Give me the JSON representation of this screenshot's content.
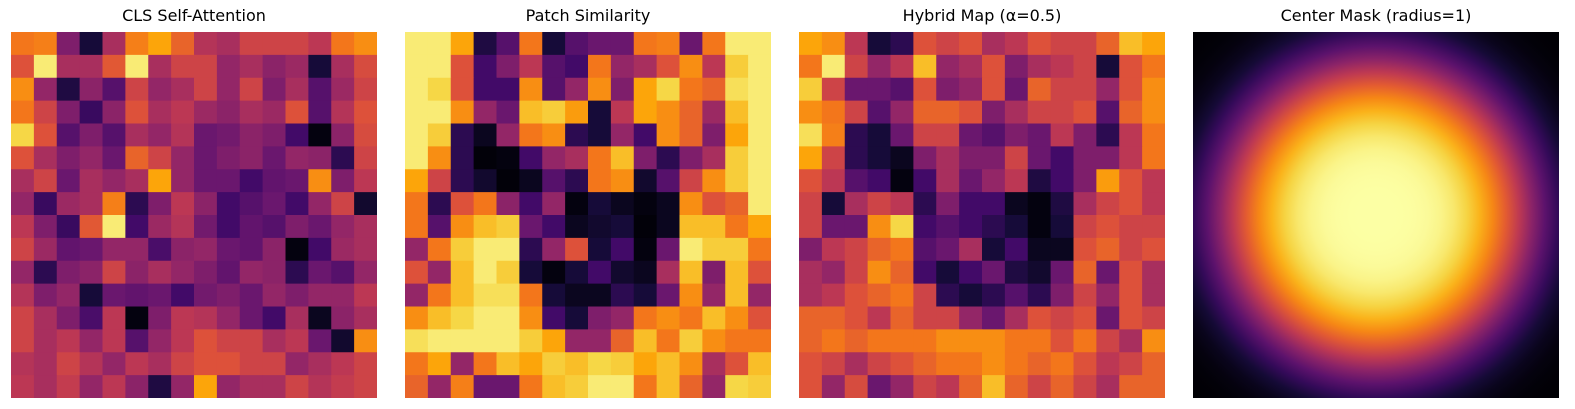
{
  "colormap": "inferno",
  "panels": [
    {
      "title": "CLS Self-Attention",
      "chart_data": {
        "type": "heatmap",
        "colormap": "inferno",
        "grid": false,
        "axes": "off",
        "values": [
          [
            0.7,
            0.72,
            0.35,
            0.1,
            0.45,
            0.72,
            0.8,
            0.65,
            0.48,
            0.45,
            0.55,
            0.55,
            0.55,
            0.5,
            0.7,
            0.75
          ],
          [
            0.6,
            0.95,
            0.45,
            0.45,
            0.62,
            0.95,
            0.45,
            0.55,
            0.55,
            0.4,
            0.45,
            0.38,
            0.42,
            0.1,
            0.45,
            0.58
          ],
          [
            0.75,
            0.4,
            0.12,
            0.38,
            0.25,
            0.55,
            0.4,
            0.45,
            0.55,
            0.4,
            0.55,
            0.35,
            0.45,
            0.25,
            0.42,
            0.55
          ],
          [
            0.7,
            0.55,
            0.35,
            0.18,
            0.38,
            0.6,
            0.45,
            0.5,
            0.42,
            0.38,
            0.45,
            0.42,
            0.6,
            0.25,
            0.48,
            0.6
          ],
          [
            0.9,
            0.6,
            0.25,
            0.35,
            0.25,
            0.45,
            0.4,
            0.48,
            0.3,
            0.32,
            0.38,
            0.35,
            0.2,
            0.02,
            0.38,
            0.58
          ],
          [
            0.6,
            0.45,
            0.35,
            0.4,
            0.3,
            0.65,
            0.55,
            0.4,
            0.3,
            0.35,
            0.38,
            0.3,
            0.4,
            0.38,
            0.15,
            0.55
          ],
          [
            0.45,
            0.55,
            0.3,
            0.45,
            0.4,
            0.45,
            0.8,
            0.4,
            0.3,
            0.3,
            0.2,
            0.28,
            0.3,
            0.75,
            0.35,
            0.5
          ],
          [
            0.4,
            0.18,
            0.42,
            0.45,
            0.72,
            0.15,
            0.35,
            0.5,
            0.38,
            0.2,
            0.25,
            0.3,
            0.2,
            0.4,
            0.55,
            0.08
          ],
          [
            0.5,
            0.35,
            0.18,
            0.62,
            0.95,
            0.2,
            0.42,
            0.48,
            0.32,
            0.2,
            0.28,
            0.25,
            0.35,
            0.3,
            0.4,
            0.45
          ],
          [
            0.55,
            0.42,
            0.28,
            0.3,
            0.4,
            0.4,
            0.22,
            0.38,
            0.4,
            0.3,
            0.28,
            0.38,
            0.02,
            0.2,
            0.42,
            0.45
          ],
          [
            0.4,
            0.15,
            0.35,
            0.38,
            0.55,
            0.38,
            0.45,
            0.4,
            0.35,
            0.28,
            0.4,
            0.38,
            0.15,
            0.3,
            0.25,
            0.4
          ],
          [
            0.48,
            0.35,
            0.4,
            0.1,
            0.3,
            0.28,
            0.3,
            0.2,
            0.32,
            0.35,
            0.3,
            0.4,
            0.35,
            0.4,
            0.4,
            0.5
          ],
          [
            0.55,
            0.45,
            0.35,
            0.22,
            0.5,
            0.02,
            0.35,
            0.5,
            0.48,
            0.4,
            0.3,
            0.2,
            0.45,
            0.05,
            0.38,
            0.45
          ],
          [
            0.55,
            0.45,
            0.5,
            0.4,
            0.5,
            0.25,
            0.4,
            0.5,
            0.6,
            0.55,
            0.55,
            0.45,
            0.5,
            0.3,
            0.08,
            0.75
          ],
          [
            0.48,
            0.45,
            0.55,
            0.48,
            0.4,
            0.5,
            0.45,
            0.55,
            0.6,
            0.6,
            0.55,
            0.55,
            0.4,
            0.45,
            0.5,
            0.55
          ],
          [
            0.5,
            0.45,
            0.52,
            0.4,
            0.5,
            0.38,
            0.12,
            0.4,
            0.8,
            0.4,
            0.45,
            0.45,
            0.55,
            0.48,
            0.52,
            0.55
          ]
        ]
      }
    },
    {
      "title": "Patch Similarity",
      "chart_data": {
        "type": "heatmap",
        "colormap": "inferno",
        "grid": false,
        "axes": "off",
        "values": [
          [
            0.95,
            0.95,
            0.8,
            0.12,
            0.25,
            0.7,
            0.1,
            0.25,
            0.3,
            0.3,
            0.7,
            0.72,
            0.3,
            0.7,
            0.95,
            0.95
          ],
          [
            0.95,
            0.95,
            0.6,
            0.2,
            0.35,
            0.5,
            0.25,
            0.2,
            0.7,
            0.4,
            0.45,
            0.6,
            0.75,
            0.5,
            0.88,
            0.95
          ],
          [
            0.95,
            0.9,
            0.6,
            0.2,
            0.2,
            0.75,
            0.25,
            0.4,
            0.75,
            0.35,
            0.8,
            0.9,
            0.7,
            0.65,
            0.92,
            0.95
          ],
          [
            0.95,
            0.95,
            0.75,
            0.4,
            0.3,
            0.85,
            0.88,
            0.78,
            0.1,
            0.5,
            0.8,
            0.75,
            0.65,
            0.42,
            0.85,
            0.95
          ],
          [
            0.95,
            0.88,
            0.15,
            0.05,
            0.4,
            0.7,
            0.75,
            0.15,
            0.1,
            0.4,
            0.2,
            0.75,
            0.65,
            0.35,
            0.8,
            0.95
          ],
          [
            0.95,
            0.75,
            0.15,
            0.01,
            0.02,
            0.2,
            0.4,
            0.45,
            0.7,
            0.85,
            0.35,
            0.15,
            0.35,
            0.45,
            0.88,
            0.95
          ],
          [
            0.8,
            0.55,
            0.15,
            0.08,
            0.01,
            0.05,
            0.25,
            0.15,
            0.7,
            0.75,
            0.08,
            0.25,
            0.55,
            0.75,
            0.88,
            0.95
          ],
          [
            0.7,
            0.15,
            0.6,
            0.7,
            0.38,
            0.2,
            0.4,
            0.02,
            0.1,
            0.05,
            0.02,
            0.05,
            0.75,
            0.6,
            0.65,
            0.95
          ],
          [
            0.7,
            0.25,
            0.75,
            0.85,
            0.88,
            0.3,
            0.2,
            0.05,
            0.08,
            0.1,
            0.01,
            0.05,
            0.85,
            0.85,
            0.7,
            0.8
          ],
          [
            0.4,
            0.7,
            0.88,
            0.95,
            0.95,
            0.15,
            0.4,
            0.6,
            0.1,
            0.2,
            0.02,
            0.3,
            0.95,
            0.88,
            0.88,
            0.7
          ],
          [
            0.6,
            0.4,
            0.85,
            0.95,
            0.88,
            0.1,
            0.02,
            0.1,
            0.2,
            0.08,
            0.05,
            0.45,
            0.85,
            0.35,
            0.85,
            0.6
          ],
          [
            0.4,
            0.7,
            0.85,
            0.92,
            0.92,
            0.7,
            0.1,
            0.05,
            0.05,
            0.15,
            0.1,
            0.3,
            0.75,
            0.4,
            0.85,
            0.4
          ],
          [
            0.75,
            0.85,
            0.9,
            0.95,
            0.95,
            0.75,
            0.2,
            0.1,
            0.35,
            0.4,
            0.7,
            0.75,
            0.7,
            0.85,
            0.75,
            0.6
          ],
          [
            0.92,
            0.95,
            0.95,
            0.95,
            0.95,
            0.88,
            0.8,
            0.4,
            0.4,
            0.65,
            0.85,
            0.7,
            0.88,
            0.75,
            0.7,
            0.7
          ],
          [
            0.7,
            0.8,
            0.4,
            0.7,
            0.85,
            0.8,
            0.88,
            0.85,
            0.9,
            0.88,
            0.8,
            0.85,
            0.75,
            0.45,
            0.6,
            0.85
          ],
          [
            0.65,
            0.4,
            0.72,
            0.3,
            0.3,
            0.7,
            0.85,
            0.88,
            0.95,
            0.95,
            0.7,
            0.85,
            0.65,
            0.4,
            0.9,
            0.88
          ]
        ]
      }
    },
    {
      "title": "Hybrid Map (α=0.5)",
      "chart_data": {
        "type": "heatmap",
        "colormap": "inferno",
        "grid": false,
        "axes": "off",
        "values": [
          [
            0.8,
            0.75,
            0.5,
            0.1,
            0.15,
            0.6,
            0.55,
            0.6,
            0.45,
            0.5,
            0.6,
            0.55,
            0.55,
            0.65,
            0.85,
            0.8
          ],
          [
            0.7,
            0.95,
            0.55,
            0.4,
            0.5,
            0.85,
            0.4,
            0.45,
            0.6,
            0.35,
            0.45,
            0.5,
            0.55,
            0.1,
            0.6,
            0.7
          ],
          [
            0.88,
            0.55,
            0.3,
            0.3,
            0.25,
            0.6,
            0.35,
            0.4,
            0.6,
            0.3,
            0.65,
            0.55,
            0.55,
            0.4,
            0.6,
            0.75
          ],
          [
            0.75,
            0.7,
            0.55,
            0.25,
            0.4,
            0.65,
            0.65,
            0.6,
            0.35,
            0.45,
            0.55,
            0.55,
            0.6,
            0.25,
            0.65,
            0.75
          ],
          [
            0.92,
            0.72,
            0.15,
            0.1,
            0.3,
            0.55,
            0.55,
            0.3,
            0.25,
            0.35,
            0.3,
            0.5,
            0.35,
            0.15,
            0.5,
            0.7
          ],
          [
            0.8,
            0.55,
            0.15,
            0.1,
            0.05,
            0.35,
            0.45,
            0.35,
            0.35,
            0.55,
            0.3,
            0.2,
            0.35,
            0.35,
            0.5,
            0.7
          ],
          [
            0.6,
            0.5,
            0.25,
            0.2,
            0.02,
            0.2,
            0.45,
            0.3,
            0.4,
            0.5,
            0.12,
            0.2,
            0.35,
            0.78,
            0.6,
            0.5
          ],
          [
            0.55,
            0.1,
            0.45,
            0.55,
            0.5,
            0.15,
            0.35,
            0.2,
            0.2,
            0.05,
            0.02,
            0.12,
            0.45,
            0.55,
            0.6,
            0.5
          ],
          [
            0.55,
            0.3,
            0.3,
            0.75,
            0.9,
            0.2,
            0.25,
            0.2,
            0.15,
            0.1,
            0.02,
            0.1,
            0.55,
            0.6,
            0.55,
            0.55
          ],
          [
            0.35,
            0.5,
            0.55,
            0.65,
            0.7,
            0.25,
            0.3,
            0.45,
            0.1,
            0.2,
            0.05,
            0.05,
            0.6,
            0.65,
            0.55,
            0.6
          ],
          [
            0.45,
            0.4,
            0.55,
            0.75,
            0.65,
            0.2,
            0.1,
            0.2,
            0.3,
            0.12,
            0.08,
            0.3,
            0.65,
            0.3,
            0.6,
            0.45
          ],
          [
            0.45,
            0.5,
            0.6,
            0.65,
            0.7,
            0.55,
            0.15,
            0.1,
            0.15,
            0.25,
            0.15,
            0.35,
            0.55,
            0.4,
            0.6,
            0.45
          ],
          [
            0.65,
            0.65,
            0.6,
            0.5,
            0.65,
            0.55,
            0.55,
            0.4,
            0.3,
            0.45,
            0.6,
            0.55,
            0.6,
            0.3,
            0.6,
            0.55
          ],
          [
            0.65,
            0.7,
            0.65,
            0.7,
            0.7,
            0.7,
            0.75,
            0.75,
            0.75,
            0.7,
            0.7,
            0.6,
            0.7,
            0.55,
            0.45,
            0.75
          ],
          [
            0.6,
            0.55,
            0.45,
            0.55,
            0.6,
            0.65,
            0.7,
            0.7,
            0.75,
            0.7,
            0.65,
            0.7,
            0.6,
            0.5,
            0.55,
            0.65
          ],
          [
            0.6,
            0.4,
            0.58,
            0.3,
            0.4,
            0.55,
            0.5,
            0.65,
            0.85,
            0.65,
            0.55,
            0.65,
            0.55,
            0.45,
            0.65,
            0.65
          ]
        ]
      }
    },
    {
      "title": "Center Mask (radius=1)",
      "chart_data": {
        "type": "heatmap",
        "colormap": "inferno",
        "grid": false,
        "axes": "off",
        "pattern": "radial",
        "radius": 1,
        "center_value": 1.0,
        "corner_value": 0.0
      }
    }
  ]
}
